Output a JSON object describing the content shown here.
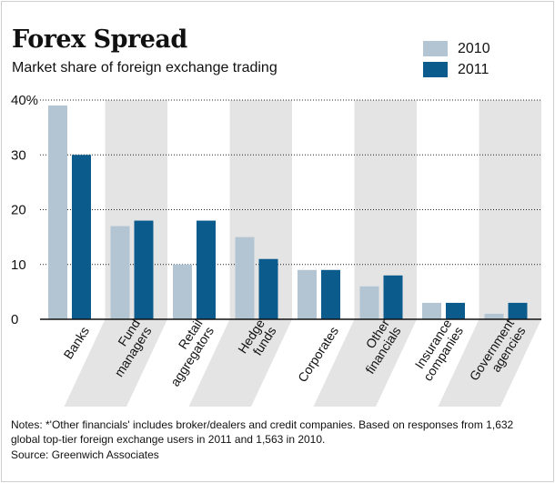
{
  "chart_data": {
    "type": "bar",
    "title": "Forex Spread",
    "subtitle": "Market share of foreign exchange trading",
    "categories": [
      "Banks",
      "Fund managers",
      "Retail aggregators",
      "Hedge funds",
      "Corporates",
      "Other financials",
      "Insurance companies",
      "Government agencies"
    ],
    "category_lines": [
      [
        "Banks"
      ],
      [
        "Fund",
        "managers"
      ],
      [
        "Retail",
        "aggregators"
      ],
      [
        "Hedge",
        "funds"
      ],
      [
        "Corporates"
      ],
      [
        "Other",
        "financials"
      ],
      [
        "Insurance",
        "companies"
      ],
      [
        "Government",
        "agencies"
      ]
    ],
    "series": [
      {
        "name": "2010",
        "color": "#b3c4d3",
        "values": [
          39,
          17,
          10,
          15,
          9,
          6,
          3,
          1
        ]
      },
      {
        "name": "2011",
        "color": "#0b5c8c",
        "values": [
          30,
          18,
          18,
          11,
          9,
          8,
          3,
          3
        ]
      }
    ],
    "ylim": [
      0,
      40
    ],
    "yticks": [
      0,
      10,
      20,
      30,
      40
    ],
    "ytick_labels": [
      "0",
      "10",
      "20",
      "30",
      "40%"
    ],
    "legend_position": "top-right",
    "band_color": "#e4e4e4",
    "notes": "Notes: *'Other financials' includes broker/dealers and credit companies. Based on responses from 1,632 global top-tier foreign exchange users in 2011 and 1,563 in 2010.",
    "source": "Source: Greenwich Associates"
  }
}
